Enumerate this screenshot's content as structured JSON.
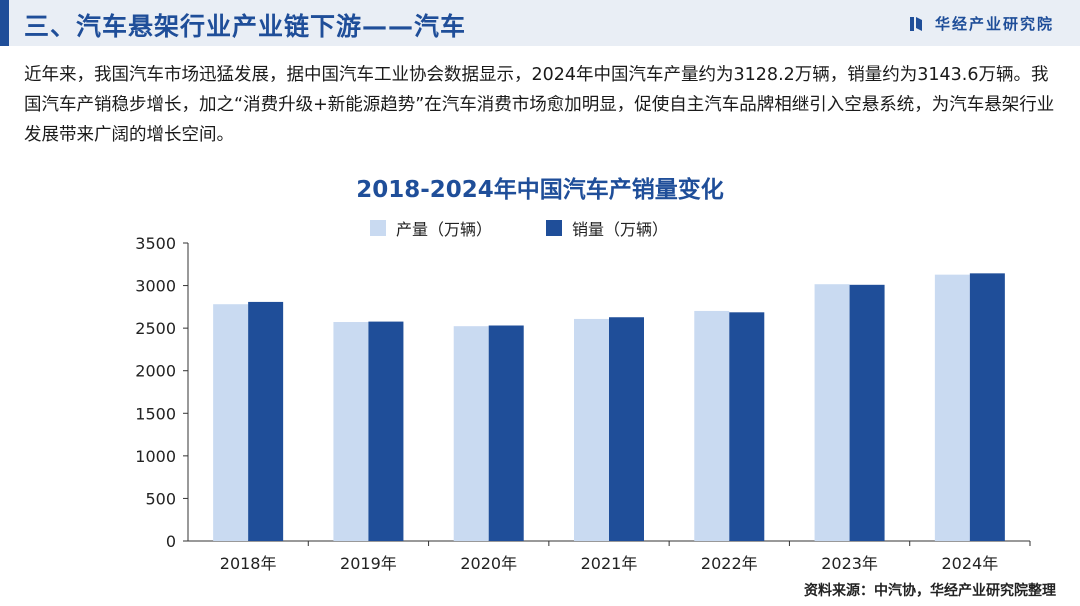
{
  "header": {
    "title": "三、汽车悬架行业产业链下游——汽车",
    "brand": "华经产业研究院"
  },
  "body": {
    "paragraph": "近年来，我国汽车市场迅猛发展，据中国汽车工业协会数据显示，2024年中国汽车产量约为3128.2万辆，销量约为3143.6万辆。我国汽车产销稳步增长，加之“消费升级+新能源趋势”在汽车消费市场愈加明显，促使自主汽车品牌相继引入空悬系统，为汽车悬架行业发展带来广阔的增长空间。"
  },
  "source": "资料来源：中汽协，华经产业研究院整理",
  "colors": {
    "production": "#c9daf1",
    "sales": "#1f4e99",
    "accent": "#1f4e99"
  },
  "chart_data": {
    "type": "bar",
    "title": "2018-2024年中国汽车产销量变化",
    "categories": [
      "2018年",
      "2019年",
      "2020年",
      "2021年",
      "2022年",
      "2023年",
      "2024年"
    ],
    "series": [
      {
        "name": "产量（万辆）",
        "values": [
          2781,
          2572,
          2523,
          2608,
          2702,
          3016,
          3128.2
        ]
      },
      {
        "name": "销量（万辆）",
        "values": [
          2808,
          2577,
          2531,
          2628,
          2686,
          3009,
          3143.6
        ]
      }
    ],
    "yticks": [
      "0",
      "500",
      "1000",
      "1500",
      "2000",
      "2500",
      "3000",
      "3500"
    ],
    "ylim": [
      0,
      3500
    ],
    "xlabel": "",
    "ylabel": "",
    "legend": "top-center",
    "grid": false
  }
}
